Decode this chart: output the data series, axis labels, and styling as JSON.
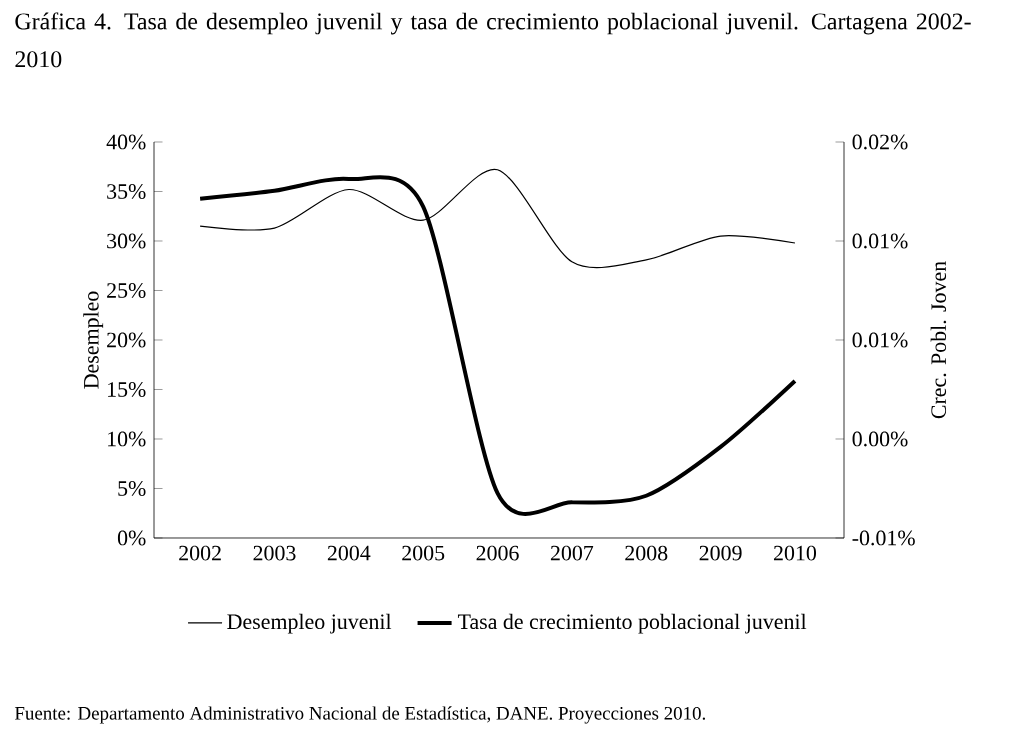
{
  "chart_data": {
    "type": "line",
    "title": "Gráfica 4. Tasa de desempleo juvenil y tasa de crecimiento poblacional juvenil. Cartagena 2002-2010",
    "ylabel": "Desempleo",
    "y2label": "Crec. Pobl. Joven",
    "categories": [
      "2002",
      "2003",
      "2004",
      "2005",
      "2006",
      "2007",
      "2008",
      "2009",
      "2010"
    ],
    "series": [
      {
        "name": "Desempleo juvenil",
        "color": "#000000",
        "values": [
          31.5,
          31.3,
          35.2,
          32.1,
          37.2,
          27.9,
          28.1,
          30.5,
          29.8
        ]
      },
      {
        "name": "Tasa de crecimiento poblacional juvenil",
        "color": "#000000",
        "axis": "y2",
        "values": [
          0.0157,
          0.0163,
          0.0172,
          0.0151,
          -0.0066,
          -0.0073,
          -0.0068,
          -0.0031,
          0.0019
        ]
      }
    ],
    "ylim": [
      0,
      40
    ],
    "yticks": [
      {
        "value": 0,
        "label": "0%"
      },
      {
        "value": 5,
        "label": "5%"
      },
      {
        "value": 10,
        "label": "10%"
      },
      {
        "value": 15,
        "label": "15%"
      },
      {
        "value": 20,
        "label": "20%"
      },
      {
        "value": 25,
        "label": "25%"
      },
      {
        "value": 30,
        "label": "30%"
      },
      {
        "value": 35,
        "label": "35%"
      },
      {
        "value": 40,
        "label": "40%"
      }
    ],
    "y2lim": [
      -0.01,
      0.02
    ],
    "y2ticks": [
      {
        "value": -0.01,
        "label": "-0.01%"
      },
      {
        "value": -0.0025,
        "label": "0.00%"
      },
      {
        "value": 0.005,
        "label": "0.01%"
      },
      {
        "value": 0.0125,
        "label": "0.01%"
      },
      {
        "value": 0.02,
        "label": "0.02%"
      }
    ],
    "legend": "bottom",
    "grid": false,
    "marker": "none",
    "line_style": "solid",
    "annotations": [
      "Fuente: Departamento Administrativo Nacional de Estadística, DANE. Proyecciones 2010."
    ]
  }
}
